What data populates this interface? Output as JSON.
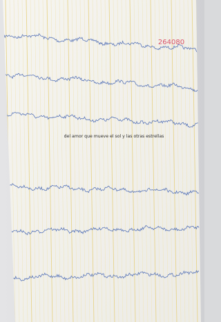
{
  "caption": "del amor que mueve el sol y las otras estrellas",
  "stamp": "264080"
}
